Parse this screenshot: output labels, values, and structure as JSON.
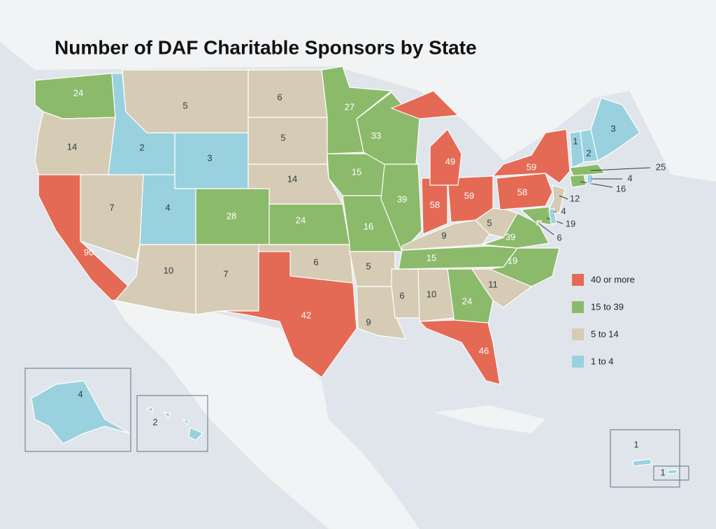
{
  "title": "Number of DAF Charitable Sponsors by State",
  "values": [
    24,
    14,
    2,
    5,
    3,
    6,
    5,
    14,
    90,
    7,
    4,
    28,
    24,
    10,
    7,
    6,
    42,
    27,
    15,
    16,
    33,
    39,
    5,
    9,
    6,
    10,
    24,
    46,
    15,
    9,
    58,
    59,
    49,
    5,
    39,
    19,
    11,
    58,
    59,
    12,
    19,
    4,
    6,
    1,
    2,
    3,
    25,
    16,
    4,
    4,
    2,
    1,
    1
  ],
  "legend": [
    {
      "label": "40 or more",
      "min": 40,
      "color": "#e46a55"
    },
    {
      "label": "15 to 39",
      "min": 15,
      "color": "#8cba6b"
    },
    {
      "label": "5 to 14",
      "min": 5,
      "color": "#d6cbb4"
    },
    {
      "label": "1 to 4",
      "min": 1,
      "color": "#99d1df"
    }
  ]
}
